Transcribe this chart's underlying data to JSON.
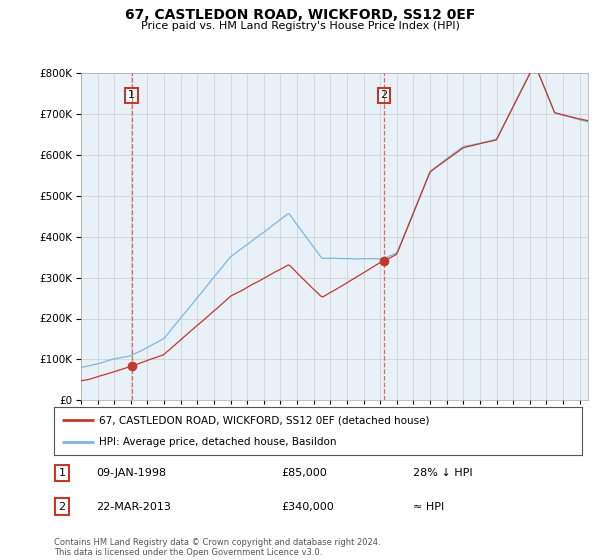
{
  "title": "67, CASTLEDON ROAD, WICKFORD, SS12 0EF",
  "subtitle": "Price paid vs. HM Land Registry's House Price Index (HPI)",
  "legend_line1": "67, CASTLEDON ROAD, WICKFORD, SS12 0EF (detached house)",
  "legend_line2": "HPI: Average price, detached house, Basildon",
  "footnote": "Contains HM Land Registry data © Crown copyright and database right 2024.\nThis data is licensed under the Open Government Licence v3.0.",
  "sale1_label": "1",
  "sale1_date": "09-JAN-1998",
  "sale1_price": "£85,000",
  "sale1_rel": "28% ↓ HPI",
  "sale2_label": "2",
  "sale2_date": "22-MAR-2013",
  "sale2_price": "£340,000",
  "sale2_rel": "≈ HPI",
  "sale1_year": 1998.05,
  "sale1_value": 85000,
  "sale2_year": 2013.22,
  "sale2_value": 340000,
  "ylim": [
    0,
    800000
  ],
  "xlim_start": 1995.0,
  "xlim_end": 2025.5,
  "line_color_red": "#c0392b",
  "line_color_blue": "#7eb6e0",
  "vline_color": "#c0392b",
  "bg_chart": "#e8f0f8",
  "background_color": "#ffffff",
  "grid_color": "#cccccc"
}
